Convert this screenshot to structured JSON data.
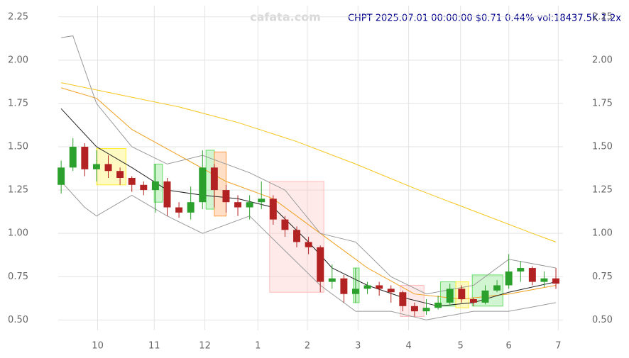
{
  "chart_data": {
    "type": "candlestick",
    "title": "CHPT 2025.07.01 00:00:00 $0.71 0.44% vol:18437.5K 1.2x",
    "watermark": "cafata.com",
    "up_color": "#2ca02c",
    "down_color": "#b22222",
    "grid": true,
    "xlim": [
      -0.25,
      42.6
    ],
    "ylim": [
      0.44,
      2.29
    ],
    "xticks": [
      {
        "value": 3.1,
        "label": "10"
      },
      {
        "value": 7.9,
        "label": "11"
      },
      {
        "value": 12.2,
        "label": "12"
      },
      {
        "value": 16.7,
        "label": "1"
      },
      {
        "value": 20.9,
        "label": "2"
      },
      {
        "value": 25.2,
        "label": "3"
      },
      {
        "value": 29.5,
        "label": "4"
      },
      {
        "value": 33.9,
        "label": "5"
      },
      {
        "value": 38,
        "label": "6"
      },
      {
        "value": 42.2,
        "label": "7"
      }
    ],
    "yticks": [
      {
        "value": 0.5,
        "label": "0.50"
      },
      0.75,
      {
        "value": 1.0,
        "label": "1.00"
      },
      1.25,
      {
        "value": 1.5,
        "label": "1.50"
      },
      1.75,
      {
        "value": 2.0,
        "label": "2.00"
      },
      2.25
    ],
    "x": [
      0,
      1,
      2,
      3,
      4,
      5,
      6,
      7,
      8,
      9,
      10,
      11,
      12,
      13,
      14,
      15,
      16,
      17,
      18,
      19,
      20,
      21,
      22,
      23,
      24,
      25,
      26,
      27,
      28,
      29,
      30,
      31,
      32,
      33,
      34,
      35,
      36,
      37,
      38,
      39,
      40,
      41,
      42
    ],
    "open": [
      1.28,
      1.38,
      1.5,
      1.37,
      1.4,
      1.36,
      1.32,
      1.28,
      1.25,
      1.3,
      1.15,
      1.12,
      1.18,
      1.38,
      1.25,
      1.18,
      1.15,
      1.18,
      1.2,
      1.08,
      1.02,
      0.95,
      0.92,
      0.72,
      0.74,
      0.65,
      0.68,
      0.7,
      0.68,
      0.66,
      0.58,
      0.55,
      0.57,
      0.6,
      0.68,
      0.62,
      0.6,
      0.67,
      0.7,
      0.78,
      0.8,
      0.72,
      0.74
    ],
    "high": [
      1.42,
      1.55,
      1.52,
      1.48,
      1.45,
      1.38,
      1.33,
      1.3,
      1.4,
      1.32,
      1.18,
      1.27,
      1.48,
      1.4,
      1.28,
      1.22,
      1.22,
      1.3,
      1.22,
      1.1,
      1.04,
      0.98,
      0.93,
      0.82,
      0.76,
      0.8,
      0.72,
      0.72,
      0.7,
      0.67,
      0.6,
      0.62,
      0.64,
      0.71,
      0.7,
      0.63,
      0.7,
      0.73,
      0.88,
      0.84,
      0.81,
      0.78,
      0.8
    ],
    "low": [
      1.23,
      1.36,
      1.33,
      1.3,
      1.32,
      1.28,
      1.24,
      1.22,
      1.12,
      1.1,
      1.09,
      1.08,
      1.14,
      1.15,
      1.12,
      1.1,
      1.08,
      1.14,
      1.05,
      0.98,
      0.92,
      0.88,
      0.66,
      0.68,
      0.6,
      0.6,
      0.65,
      0.64,
      0.6,
      0.55,
      0.52,
      0.53,
      0.56,
      0.59,
      0.6,
      0.58,
      0.59,
      0.66,
      0.68,
      0.72,
      0.7,
      0.69,
      0.68
    ],
    "close": [
      1.38,
      1.5,
      1.37,
      1.4,
      1.36,
      1.32,
      1.28,
      1.25,
      1.3,
      1.15,
      1.12,
      1.18,
      1.38,
      1.25,
      1.18,
      1.15,
      1.18,
      1.2,
      1.08,
      1.02,
      0.95,
      0.92,
      0.72,
      0.74,
      0.65,
      0.68,
      0.7,
      0.68,
      0.66,
      0.58,
      0.55,
      0.57,
      0.6,
      0.68,
      0.62,
      0.6,
      0.67,
      0.7,
      0.78,
      0.8,
      0.72,
      0.74,
      0.71
    ],
    "zones": [
      {
        "color": "#ffee33",
        "x0": 3,
        "x1": 5.5,
        "lo": 1.28,
        "hi": 1.49
      },
      {
        "color": "#66dd66",
        "x0": 7.9,
        "x1": 8.6,
        "lo": 1.18,
        "hi": 1.4
      },
      {
        "color": "#66dd66",
        "x0": 12.3,
        "x1": 13,
        "lo": 1.14,
        "hi": 1.48
      },
      {
        "color": "#ff9944",
        "x0": 13,
        "x1": 14,
        "lo": 1.1,
        "hi": 1.47
      },
      {
        "color": "#ffbbbb",
        "x0": 17.7,
        "x1": 22.3,
        "lo": 0.66,
        "hi": 1.3
      },
      {
        "color": "#66dd66",
        "x0": 24.8,
        "x1": 25.3,
        "lo": 0.6,
        "hi": 0.8
      },
      {
        "color": "#ffbbbb",
        "x0": 28.8,
        "x1": 30.8,
        "lo": 0.52,
        "hi": 0.7
      },
      {
        "color": "#66dd66",
        "x0": 32.2,
        "x1": 33.5,
        "lo": 0.58,
        "hi": 0.72
      },
      {
        "color": "#ffee33",
        "x0": 33.5,
        "x1": 34.6,
        "lo": 0.57,
        "hi": 0.72
      },
      {
        "color": "#66dd66",
        "x0": 34.9,
        "x1": 37.5,
        "lo": 0.58,
        "hi": 0.76
      }
    ],
    "lines": [
      {
        "color": "#f5c518",
        "x": [
          0,
          5,
          10,
          15,
          20,
          25,
          30,
          35,
          40,
          42
        ],
        "values": [
          1.87,
          1.8,
          1.73,
          1.64,
          1.53,
          1.4,
          1.26,
          1.13,
          1.0,
          0.95
        ]
      },
      {
        "color": "#f0a020",
        "x": [
          0,
          3,
          6,
          10,
          14,
          18,
          22,
          26,
          30,
          34,
          38,
          42
        ],
        "values": [
          1.84,
          1.78,
          1.6,
          1.45,
          1.3,
          1.2,
          1.0,
          0.8,
          0.65,
          0.62,
          0.65,
          0.7
        ]
      },
      {
        "color": "#222222",
        "x": [
          0,
          3,
          6,
          9,
          12,
          15,
          18,
          21,
          23,
          26,
          29,
          32,
          35,
          38,
          42
        ],
        "values": [
          1.72,
          1.5,
          1.38,
          1.25,
          1.22,
          1.2,
          1.15,
          0.95,
          0.8,
          0.7,
          0.63,
          0.58,
          0.6,
          0.66,
          0.72
        ]
      },
      {
        "color": "#999999",
        "x": [
          0,
          1,
          3,
          6,
          9,
          12,
          16,
          19,
          22,
          25,
          28,
          31,
          35,
          38,
          42
        ],
        "values": [
          2.13,
          2.14,
          1.75,
          1.5,
          1.4,
          1.45,
          1.35,
          1.25,
          1.0,
          0.95,
          0.75,
          0.65,
          0.7,
          0.85,
          0.8
        ]
      },
      {
        "color": "#999999",
        "x": [
          0,
          2,
          3,
          6,
          9,
          12,
          16,
          19,
          22,
          25,
          28,
          31,
          35,
          38,
          42
        ],
        "values": [
          1.3,
          1.15,
          1.1,
          1.22,
          1.1,
          1.0,
          1.1,
          0.9,
          0.7,
          0.55,
          0.55,
          0.5,
          0.55,
          0.55,
          0.6
        ]
      }
    ]
  }
}
